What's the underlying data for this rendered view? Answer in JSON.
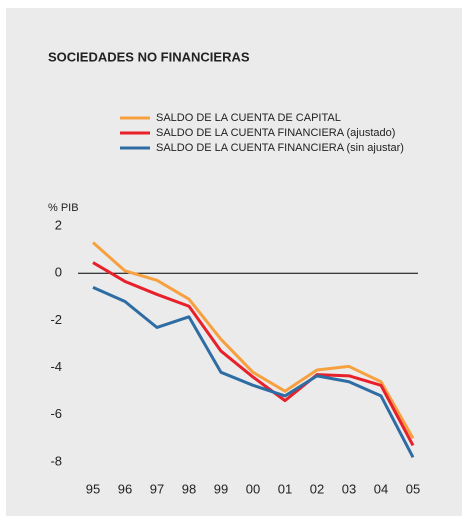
{
  "chart_data": {
    "type": "line",
    "title": "SOCIEDADES NO FINANCIERAS",
    "y_label": "% PIB",
    "categories": [
      "95",
      "96",
      "97",
      "98",
      "99",
      "00",
      "01",
      "02",
      "03",
      "04",
      "05"
    ],
    "series": [
      {
        "name": "SALDO DE LA CUENTA DE CAPITAL",
        "color": "#f7a040",
        "values": [
          1.3,
          0.1,
          -0.3,
          -1.1,
          -2.8,
          -4.2,
          -5.0,
          -4.1,
          -3.95,
          -4.6,
          -7.0
        ]
      },
      {
        "name": "SALDO DE LA CUENTA FINANCIERA (ajustado)",
        "color": "#e8202a",
        "values": [
          0.45,
          -0.35,
          -0.9,
          -1.4,
          -3.3,
          -4.4,
          -5.4,
          -4.3,
          -4.35,
          -4.75,
          -7.3
        ]
      },
      {
        "name": "SALDO DE LA CUENTA FINANCIERA (sin ajustar)",
        "color": "#2e6da4",
        "values": [
          -0.6,
          -1.2,
          -2.3,
          -1.85,
          -4.2,
          -4.75,
          -5.2,
          -4.35,
          -4.6,
          -5.2,
          -7.8
        ]
      }
    ],
    "ylim": [
      -8,
      2
    ],
    "yticks": [
      -8,
      -6,
      -4,
      -2,
      0,
      2
    ],
    "zero_line": true
  }
}
